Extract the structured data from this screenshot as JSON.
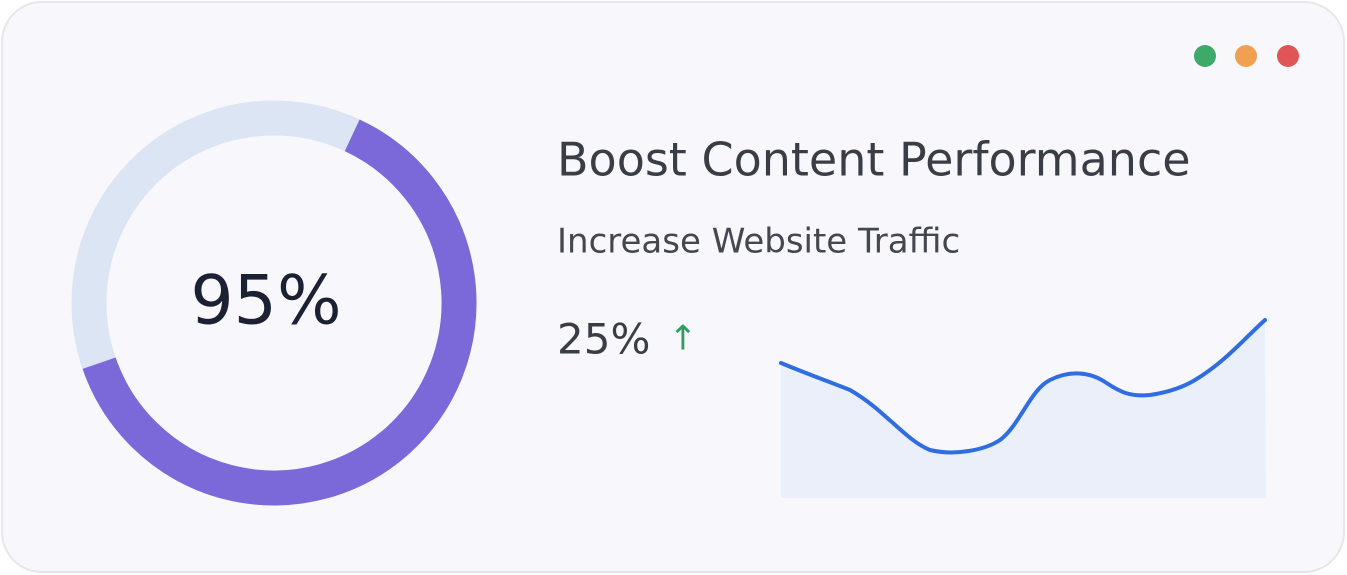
{
  "gauge": {
    "label": "95%"
  },
  "header": {
    "title": "Boost Content Performance",
    "subtitle": "Increase Website Traffic"
  },
  "metric": {
    "value": "25%",
    "arrow": "↑"
  }
}
